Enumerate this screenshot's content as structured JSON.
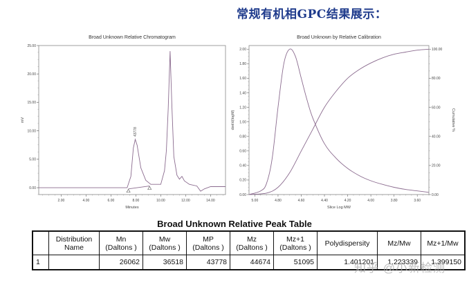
{
  "heading": "常规有机相GPC结果展示：",
  "chart_data": [
    {
      "type": "line",
      "title": "Broad Unknown Relative Chromatogram",
      "xlabel": "Minutes",
      "ylabel": "mV",
      "xlim": [
        0.2,
        15.2
      ],
      "ylim": [
        -1.2,
        25.0
      ],
      "x_ticks": [
        "2.00",
        "4.00",
        "6.00",
        "8.00",
        "10.00",
        "12.00",
        "14.00"
      ],
      "y_ticks": [
        "0.00",
        "5.00",
        "10.00",
        "15.00",
        "20.00",
        "25.00"
      ],
      "peak_annotation": "43778",
      "series": [
        {
          "name": "signal",
          "x": [
            0.2,
            7.3,
            7.6,
            7.8,
            7.95,
            8.1,
            8.4,
            8.8,
            9.2,
            10.0,
            10.3,
            10.45,
            10.6,
            10.75,
            10.9,
            11.05,
            11.3,
            11.5,
            11.7,
            11.9,
            12.3,
            12.9,
            13.2,
            13.5,
            14.0,
            15.2
          ],
          "y": [
            0.0,
            0.0,
            2.0,
            7.0,
            8.5,
            7.5,
            3.5,
            1.3,
            0.6,
            0.6,
            3.0,
            6.5,
            14.0,
            24.0,
            14.0,
            5.5,
            2.2,
            1.5,
            2.0,
            1.2,
            0.6,
            0.3,
            -0.6,
            -0.2,
            0.2,
            0.2
          ]
        },
        {
          "name": "baseline",
          "x": [
            7.4,
            9.1
          ],
          "y": [
            -0.2,
            0.3
          ]
        }
      ],
      "markers": [
        {
          "x": 7.4,
          "y": -0.2,
          "shape": "triangle"
        },
        {
          "x": 9.1,
          "y": 0.3,
          "shape": "triangle"
        }
      ],
      "grid": false
    },
    {
      "type": "line",
      "title": "Broad Unknown by Relative Calibration",
      "xlabel": "Slice Log MW",
      "ylabel": "dwt/d(logM)",
      "y2label": "Cumulative %",
      "xlim": [
        5.05,
        3.5
      ],
      "ylim": [
        0.0,
        2.05
      ],
      "y2lim": [
        0.0,
        102.5
      ],
      "x_ticks": [
        "5.00",
        "4.80",
        "4.60",
        "4.40",
        "4.20",
        "4.00",
        "3.80",
        "3.60"
      ],
      "y_ticks": [
        "0.00",
        "0.20",
        "0.40",
        "0.60",
        "0.80",
        "1.00",
        "1.20",
        "1.40",
        "1.60",
        "1.80",
        "2.00"
      ],
      "y2_ticks": [
        "0.00",
        "20.00",
        "40.00",
        "60.00",
        "80.00",
        "100.00"
      ],
      "series": [
        {
          "name": "dwt/d(logM)",
          "x": [
            5.05,
            4.95,
            4.9,
            4.85,
            4.8,
            4.75,
            4.7,
            4.65,
            4.6,
            4.55,
            4.5,
            4.4,
            4.3,
            4.2,
            4.1,
            4.0,
            3.9,
            3.8,
            3.7,
            3.6,
            3.5
          ],
          "y": [
            0.0,
            0.05,
            0.15,
            0.5,
            1.2,
            1.8,
            2.0,
            1.9,
            1.6,
            1.3,
            1.05,
            0.7,
            0.5,
            0.36,
            0.26,
            0.19,
            0.14,
            0.1,
            0.07,
            0.05,
            0.03
          ]
        },
        {
          "name": "Cumulative %",
          "x": [
            5.05,
            4.9,
            4.8,
            4.7,
            4.6,
            4.5,
            4.4,
            4.3,
            4.2,
            4.1,
            4.0,
            3.9,
            3.8,
            3.7,
            3.6,
            3.5
          ],
          "y": [
            0.0,
            1.0,
            5.0,
            15.0,
            30.0,
            45.0,
            60.0,
            71.0,
            80.0,
            86.0,
            90.5,
            94.0,
            96.5,
            98.0,
            99.3,
            100.0
          ]
        }
      ],
      "grid": false
    }
  ],
  "table": {
    "title": "Broad Unknown Relative Peak Table",
    "headers": [
      {
        "line1": "",
        "line2": ""
      },
      {
        "line1": "Distribution",
        "line2": "Name"
      },
      {
        "line1": "Mn",
        "line2": "(Daltons )"
      },
      {
        "line1": "Mw",
        "line2": "(Daltons )"
      },
      {
        "line1": "MP",
        "line2": "(Daltons )"
      },
      {
        "line1": "Mz",
        "line2": "(Daltons )"
      },
      {
        "line1": "Mz+1",
        "line2": "(Daltons )"
      },
      {
        "line1": "Polydispersity",
        "line2": ""
      },
      {
        "line1": "Mz/Mw",
        "line2": ""
      },
      {
        "line1": "Mz+1/Mw",
        "line2": ""
      }
    ],
    "rows": [
      [
        "1",
        "",
        "26062",
        "36518",
        "43778",
        "44674",
        "51095",
        "1.401201",
        "1.223339",
        "1.399150"
      ]
    ]
  },
  "watermark": "知乎 @小新检测"
}
